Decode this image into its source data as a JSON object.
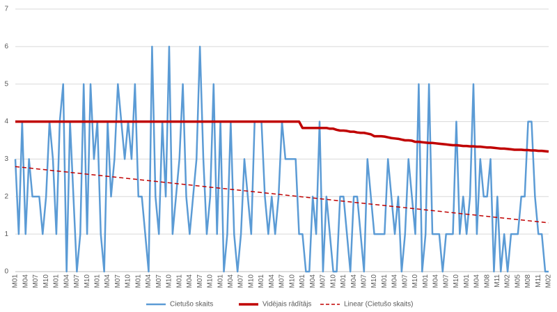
{
  "chart_data": {
    "type": "line",
    "categories": [
      "M01",
      null,
      null,
      "M04",
      null,
      null,
      "M07",
      null,
      null,
      "M10",
      null,
      null,
      "M01",
      null,
      null,
      "M04",
      null,
      null,
      "M07",
      null,
      null,
      "M10",
      null,
      null,
      "M01",
      null,
      null,
      "M04",
      null,
      null,
      "M07",
      null,
      null,
      "M10",
      null,
      null,
      "M01",
      null,
      null,
      "M04",
      null,
      null,
      "M07",
      null,
      null,
      "M10",
      null,
      null,
      "M01",
      null,
      null,
      "M04",
      null,
      null,
      "M07",
      null,
      null,
      "M10",
      null,
      null,
      "M01",
      null,
      null,
      "M04",
      null,
      null,
      "M07",
      null,
      null,
      "M10",
      null,
      null,
      "M01",
      null,
      null,
      "M04",
      null,
      null,
      "M07",
      null,
      null,
      "M10",
      null,
      null,
      "M01",
      null,
      null,
      "M04",
      null,
      null,
      "M07",
      null,
      null,
      "M10",
      null,
      null,
      "M01",
      null,
      null,
      "M04",
      null,
      null,
      "M07",
      null,
      null,
      "M10",
      null,
      null,
      "M01",
      null,
      null,
      "M04",
      null,
      null,
      "M07",
      null,
      null,
      "M10",
      null,
      null,
      "M01",
      null,
      null,
      "M04",
      null,
      null,
      "M07",
      null,
      null,
      "M10",
      null,
      null,
      "M01",
      null,
      null,
      "M04",
      null,
      null,
      "M08",
      null,
      null,
      "M11",
      null,
      null,
      "M02",
      null,
      null,
      "M05",
      null,
      null,
      "M08",
      null,
      null,
      "M11",
      null,
      null,
      "M02"
    ],
    "series": [
      {
        "name": "Cietušo skaits",
        "color": "#5b9bd5",
        "width": 2.5,
        "values": [
          3,
          1,
          4,
          1,
          3,
          2,
          2,
          2,
          1,
          2,
          4,
          3,
          1,
          4,
          5,
          0,
          4,
          2,
          0,
          1,
          5,
          1,
          5,
          3,
          4,
          1,
          0,
          4,
          2,
          3,
          5,
          4,
          3,
          4,
          3,
          5,
          2,
          2,
          1,
          0,
          6,
          2,
          1,
          4,
          2,
          6,
          1,
          2,
          3,
          5,
          2,
          1,
          2,
          3,
          6,
          3,
          1,
          2,
          5,
          1,
          4,
          0,
          1,
          4,
          1,
          0,
          1,
          3,
          2,
          1,
          4,
          4,
          4,
          2,
          1,
          2,
          1,
          2,
          4,
          3,
          3,
          3,
          3,
          1,
          1,
          0,
          0,
          2,
          1,
          4,
          0,
          2,
          1,
          0,
          0,
          2,
          2,
          1,
          0,
          2,
          2,
          1,
          0,
          3,
          2,
          1,
          1,
          1,
          1,
          3,
          2,
          1,
          2,
          0,
          1,
          3,
          2,
          1,
          5,
          0,
          1,
          5,
          1,
          1,
          1,
          0,
          1,
          1,
          1,
          4,
          1,
          2,
          1,
          2,
          5,
          1,
          3,
          2,
          2,
          3,
          0,
          2,
          0,
          1,
          0,
          1,
          1,
          1,
          2,
          2,
          4,
          4,
          2,
          1,
          1,
          0,
          0
        ]
      },
      {
        "name": "Vidējais rādītājs",
        "color": "#c00000",
        "width": 3.5,
        "values": [
          4,
          4,
          4,
          4,
          4,
          4,
          4,
          4,
          4,
          4,
          4,
          4,
          4,
          4,
          4,
          4,
          4,
          4,
          4,
          4,
          4,
          4,
          4,
          4,
          4,
          4,
          4,
          4,
          4,
          4,
          4,
          4,
          4,
          4,
          4,
          4,
          4,
          4,
          4,
          4,
          4,
          4,
          4,
          4,
          4,
          4,
          4,
          4,
          4,
          4,
          4,
          4,
          4,
          4,
          4,
          4,
          4,
          4,
          4,
          4,
          4,
          4,
          4,
          4,
          4,
          4,
          4,
          4,
          4,
          4,
          4,
          4,
          4,
          4,
          4,
          4,
          4,
          4,
          4,
          4,
          4,
          4,
          4,
          4,
          3.83,
          3.83,
          3.83,
          3.83,
          3.83,
          3.83,
          3.83,
          3.83,
          3.81,
          3.81,
          3.78,
          3.76,
          3.76,
          3.75,
          3.73,
          3.73,
          3.71,
          3.7,
          3.7,
          3.68,
          3.66,
          3.61,
          3.61,
          3.61,
          3.6,
          3.58,
          3.56,
          3.55,
          3.54,
          3.52,
          3.5,
          3.5,
          3.49,
          3.46,
          3.46,
          3.45,
          3.44,
          3.43,
          3.43,
          3.42,
          3.41,
          3.4,
          3.39,
          3.38,
          3.37,
          3.37,
          3.36,
          3.35,
          3.35,
          3.34,
          3.34,
          3.33,
          3.33,
          3.32,
          3.31,
          3.31,
          3.3,
          3.29,
          3.28,
          3.28,
          3.27,
          3.26,
          3.25,
          3.25,
          3.25,
          3.24,
          3.24,
          3.23,
          3.23,
          3.22,
          3.22,
          3.21,
          3.2
        ]
      }
    ],
    "trend": {
      "name": "Linear (Cietušo skaits)",
      "color": "#c00000",
      "values": [
        2.8,
        1.3
      ]
    },
    "ylim": [
      0,
      7
    ],
    "yticks": [
      0,
      1,
      2,
      3,
      4,
      5,
      6,
      7
    ],
    "grid": true,
    "legend": "bottom"
  }
}
